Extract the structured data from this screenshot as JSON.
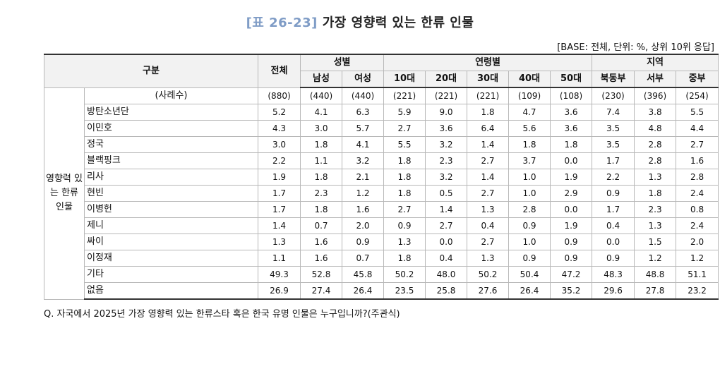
{
  "title": {
    "code": "[표 26-23]",
    "text": "가장 영향력 있는 한류 인물"
  },
  "base_note": "[BASE: 전체, 단위: %, 상위 10위 응답]",
  "header": {
    "category": "구분",
    "total": "전체",
    "gender_group": "성별",
    "age_group": "연령별",
    "region_group": "지역",
    "columns": [
      "남성",
      "여성",
      "10대",
      "20대",
      "30대",
      "40대",
      "50대",
      "북동부",
      "서부",
      "중부"
    ]
  },
  "row_group_label": "영향력 있는 한류 인물",
  "cases_row": {
    "label": "(사례수)",
    "values": [
      "(880)",
      "(440)",
      "(440)",
      "(221)",
      "(221)",
      "(221)",
      "(109)",
      "(108)",
      "(230)",
      "(396)",
      "(254)"
    ]
  },
  "rows": [
    {
      "label": "방탄소년단",
      "values": [
        "5.2",
        "4.1",
        "6.3",
        "5.9",
        "9.0",
        "1.8",
        "4.7",
        "3.6",
        "7.4",
        "3.8",
        "5.5"
      ]
    },
    {
      "label": "이민호",
      "values": [
        "4.3",
        "3.0",
        "5.7",
        "2.7",
        "3.6",
        "6.4",
        "5.6",
        "3.6",
        "3.5",
        "4.8",
        "4.4"
      ]
    },
    {
      "label": "정국",
      "values": [
        "3.0",
        "1.8",
        "4.1",
        "5.5",
        "3.2",
        "1.4",
        "1.8",
        "1.8",
        "3.5",
        "2.8",
        "2.7"
      ]
    },
    {
      "label": "블랙핑크",
      "values": [
        "2.2",
        "1.1",
        "3.2",
        "1.8",
        "2.3",
        "2.7",
        "3.7",
        "0.0",
        "1.7",
        "2.8",
        "1.6"
      ]
    },
    {
      "label": "리사",
      "values": [
        "1.9",
        "1.8",
        "2.1",
        "1.8",
        "3.2",
        "1.4",
        "1.0",
        "1.9",
        "2.2",
        "1.3",
        "2.8"
      ]
    },
    {
      "label": "현빈",
      "values": [
        "1.7",
        "2.3",
        "1.2",
        "1.8",
        "0.5",
        "2.7",
        "1.0",
        "2.9",
        "0.9",
        "1.8",
        "2.4"
      ]
    },
    {
      "label": "이병헌",
      "values": [
        "1.7",
        "1.8",
        "1.6",
        "2.7",
        "1.4",
        "1.3",
        "2.8",
        "0.0",
        "1.7",
        "2.3",
        "0.8"
      ]
    },
    {
      "label": "제니",
      "values": [
        "1.4",
        "0.7",
        "2.0",
        "0.9",
        "2.7",
        "0.4",
        "0.9",
        "1.9",
        "0.4",
        "1.3",
        "2.4"
      ]
    },
    {
      "label": "싸이",
      "values": [
        "1.3",
        "1.6",
        "0.9",
        "1.3",
        "0.0",
        "2.7",
        "1.0",
        "0.9",
        "0.0",
        "1.5",
        "2.0"
      ]
    },
    {
      "label": "이정재",
      "values": [
        "1.1",
        "1.6",
        "0.7",
        "1.8",
        "0.4",
        "1.3",
        "0.9",
        "0.9",
        "0.9",
        "1.2",
        "1.2"
      ]
    },
    {
      "label": "기타",
      "values": [
        "49.3",
        "52.8",
        "45.8",
        "50.2",
        "48.0",
        "50.2",
        "50.4",
        "47.2",
        "48.3",
        "48.8",
        "51.1"
      ]
    },
    {
      "label": "없음",
      "values": [
        "26.9",
        "27.4",
        "26.4",
        "23.5",
        "25.8",
        "27.6",
        "26.4",
        "35.2",
        "29.6",
        "27.8",
        "23.2"
      ]
    }
  ],
  "question": "Q. 자국에서 2025년 가장 영향력 있는 한류스타 혹은 한국 유명 인물은 누구입니까?(주관식)"
}
